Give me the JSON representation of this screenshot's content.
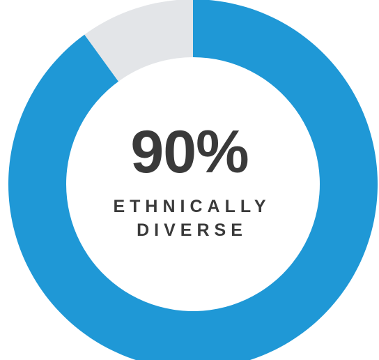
{
  "chart_data": {
    "type": "pie",
    "donut": true,
    "slices": [
      {
        "label": "Ethnically diverse",
        "value": 90,
        "color": "#1f98d6"
      },
      {
        "label": "",
        "value": 10,
        "color": "#e3e5e8"
      }
    ],
    "center_value": "90%",
    "center_caption_line1": "ETHNICALLY",
    "center_caption_line2": "DIVERSE"
  }
}
